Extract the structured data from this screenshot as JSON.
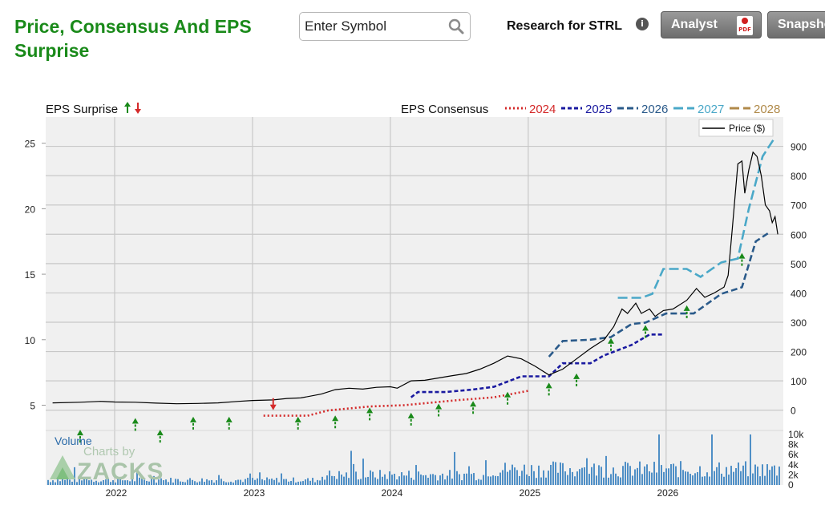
{
  "header": {
    "title": "Price, Consensus And EPS Surprise",
    "symbol_placeholder": "Enter Symbol",
    "research_label": "Research for STRL",
    "analyst_button": "Analyst",
    "pdf_label": "PDF",
    "snapshot_button": "Snapshot"
  },
  "chart_data": {
    "type": "line",
    "x_tick_labels": [
      "2022",
      "2023",
      "2024",
      "2025",
      "2026"
    ],
    "y_left_label": "",
    "y_left_ticks": [
      5,
      10,
      15,
      20,
      25
    ],
    "y_left_range": [
      3.5,
      27
    ],
    "y_right_ticks": [
      0,
      100,
      200,
      300,
      400,
      500,
      600,
      700,
      800,
      900
    ],
    "y_right_range": [
      -50,
      1000
    ],
    "volume_label": "Volume",
    "volume_ticks": [
      "10k",
      "8k",
      "6k",
      "4k",
      "2k",
      "0"
    ],
    "volume_range": [
      0,
      10000
    ],
    "watermark_top": "Charts by",
    "watermark_brand": "ZACKS",
    "legend": {
      "eps_surprise_label": "EPS Surprise",
      "eps_consensus_label": "EPS Consensus",
      "price_label": "Price ($)",
      "years": [
        {
          "name": "2024",
          "color": "#d42a2a",
          "dash": "dot"
        },
        {
          "name": "2025",
          "color": "#1a1aa0",
          "dash": "shortdash"
        },
        {
          "name": "2026",
          "color": "#2a5a8a",
          "dash": "dash"
        },
        {
          "name": "2027",
          "color": "#4aa8c8",
          "dash": "longdash"
        },
        {
          "name": "2028",
          "color": "#b08a4a",
          "dash": "longdash"
        }
      ]
    },
    "price": {
      "name": "Price ($)",
      "color": "#000000",
      "points": [
        [
          2021.55,
          25
        ],
        [
          2021.75,
          27
        ],
        [
          2021.9,
          30
        ],
        [
          2022.0,
          28
        ],
        [
          2022.15,
          27
        ],
        [
          2022.3,
          24
        ],
        [
          2022.45,
          22
        ],
        [
          2022.6,
          23
        ],
        [
          2022.75,
          25
        ],
        [
          2022.9,
          30
        ],
        [
          2023.0,
          33
        ],
        [
          2023.15,
          35
        ],
        [
          2023.25,
          40
        ],
        [
          2023.35,
          42
        ],
        [
          2023.5,
          55
        ],
        [
          2023.6,
          70
        ],
        [
          2023.7,
          75
        ],
        [
          2023.8,
          72
        ],
        [
          2023.9,
          78
        ],
        [
          2024.0,
          80
        ],
        [
          2024.05,
          75
        ],
        [
          2024.15,
          100
        ],
        [
          2024.25,
          102
        ],
        [
          2024.35,
          110
        ],
        [
          2024.45,
          118
        ],
        [
          2024.55,
          125
        ],
        [
          2024.65,
          140
        ],
        [
          2024.75,
          160
        ],
        [
          2024.85,
          185
        ],
        [
          2024.95,
          175
        ],
        [
          2025.05,
          150
        ],
        [
          2025.15,
          120
        ],
        [
          2025.25,
          140
        ],
        [
          2025.35,
          175
        ],
        [
          2025.45,
          210
        ],
        [
          2025.55,
          240
        ],
        [
          2025.62,
          285
        ],
        [
          2025.68,
          345
        ],
        [
          2025.72,
          330
        ],
        [
          2025.78,
          365
        ],
        [
          2025.82,
          330
        ],
        [
          2025.88,
          345
        ],
        [
          2025.92,
          320
        ],
        [
          2025.98,
          340
        ],
        [
          2026.05,
          345
        ],
        [
          2026.15,
          375
        ],
        [
          2026.22,
          415
        ],
        [
          2026.28,
          385
        ],
        [
          2026.35,
          400
        ],
        [
          2026.42,
          420
        ],
        [
          2026.45,
          460
        ],
        [
          2026.48,
          620
        ],
        [
          2026.52,
          840
        ],
        [
          2026.55,
          850
        ],
        [
          2026.57,
          740
        ],
        [
          2026.6,
          820
        ],
        [
          2026.63,
          880
        ],
        [
          2026.66,
          865
        ],
        [
          2026.69,
          800
        ],
        [
          2026.72,
          700
        ],
        [
          2026.75,
          680
        ],
        [
          2026.77,
          640
        ],
        [
          2026.79,
          660
        ],
        [
          2026.81,
          600
        ]
      ]
    },
    "consensus": [
      {
        "name": "2024",
        "points": [
          [
            2023.08,
            4.2
          ],
          [
            2023.4,
            4.2
          ],
          [
            2023.55,
            4.6
          ],
          [
            2023.85,
            4.9
          ],
          [
            2024.1,
            5.0
          ],
          [
            2024.5,
            5.4
          ],
          [
            2024.75,
            5.6
          ],
          [
            2024.9,
            5.9
          ],
          [
            2025.0,
            6.1
          ]
        ]
      },
      {
        "name": "2025",
        "points": [
          [
            2024.15,
            5.6
          ],
          [
            2024.2,
            6.0
          ],
          [
            2024.4,
            6.0
          ],
          [
            2024.6,
            6.2
          ],
          [
            2024.75,
            6.4
          ],
          [
            2024.95,
            7.2
          ],
          [
            2025.15,
            7.2
          ],
          [
            2025.25,
            8.2
          ],
          [
            2025.45,
            8.2
          ],
          [
            2025.55,
            8.8
          ],
          [
            2025.75,
            9.6
          ],
          [
            2025.88,
            10.4
          ],
          [
            2025.98,
            10.4
          ]
        ]
      },
      {
        "name": "2026",
        "points": [
          [
            2025.15,
            8.7
          ],
          [
            2025.25,
            9.9
          ],
          [
            2025.45,
            10.0
          ],
          [
            2025.6,
            10.2
          ],
          [
            2025.75,
            11.2
          ],
          [
            2025.85,
            11.3
          ],
          [
            2026.0,
            12.0
          ],
          [
            2026.2,
            12.0
          ],
          [
            2026.4,
            13.5
          ],
          [
            2026.55,
            14.0
          ],
          [
            2026.65,
            17.5
          ],
          [
            2026.75,
            18.2
          ]
        ]
      },
      {
        "name": "2027",
        "points": [
          [
            2025.65,
            13.2
          ],
          [
            2025.82,
            13.2
          ],
          [
            2025.9,
            13.5
          ],
          [
            2025.98,
            15.4
          ],
          [
            2026.15,
            15.4
          ],
          [
            2026.25,
            14.8
          ],
          [
            2026.4,
            15.9
          ],
          [
            2026.52,
            16.2
          ],
          [
            2026.6,
            20.0
          ],
          [
            2026.7,
            24.0
          ],
          [
            2026.78,
            25.3
          ]
        ]
      }
    ],
    "eps_surprises": [
      {
        "x": 2021.75,
        "value": 3.0,
        "dir": "up"
      },
      {
        "x": 2022.15,
        "value": 3.9,
        "dir": "up"
      },
      {
        "x": 2022.33,
        "value": 3.0,
        "dir": "up"
      },
      {
        "x": 2022.57,
        "value": 4.0,
        "dir": "up"
      },
      {
        "x": 2022.83,
        "value": 4.0,
        "dir": "up"
      },
      {
        "x": 2023.15,
        "value": 4.8,
        "dir": "down"
      },
      {
        "x": 2023.33,
        "value": 4.0,
        "dir": "up"
      },
      {
        "x": 2023.6,
        "value": 4.1,
        "dir": "up"
      },
      {
        "x": 2023.85,
        "value": 4.7,
        "dir": "up"
      },
      {
        "x": 2024.15,
        "value": 4.3,
        "dir": "up"
      },
      {
        "x": 2024.35,
        "value": 5.0,
        "dir": "up"
      },
      {
        "x": 2024.6,
        "value": 5.2,
        "dir": "up"
      },
      {
        "x": 2024.85,
        "value": 5.9,
        "dir": "up"
      },
      {
        "x": 2025.15,
        "value": 6.6,
        "dir": "up"
      },
      {
        "x": 2025.35,
        "value": 7.3,
        "dir": "up"
      },
      {
        "x": 2025.6,
        "value": 10.0,
        "dir": "up"
      },
      {
        "x": 2025.85,
        "value": 11.0,
        "dir": "up"
      },
      {
        "x": 2026.15,
        "value": 12.5,
        "dir": "up"
      },
      {
        "x": 2026.55,
        "value": 16.5,
        "dir": "up"
      }
    ]
  }
}
